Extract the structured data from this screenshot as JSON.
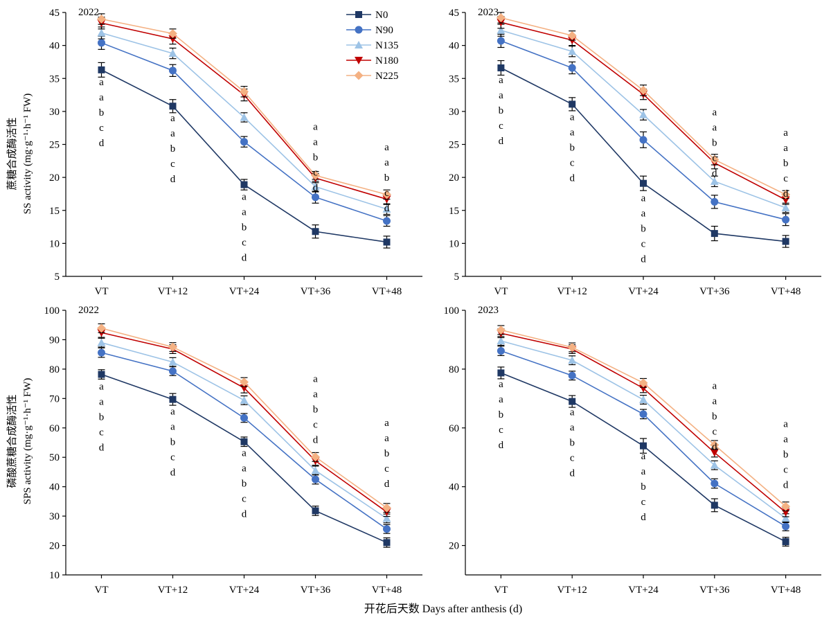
{
  "figure": {
    "xlabel": "开花后天数 Days after anthesis (d)",
    "ylabel_top": [
      "蔗糖合成酶活性",
      "SS activity (mg·g⁻¹·h⁻¹ FW)"
    ],
    "ylabel_bottom": [
      "磷酸蔗糖合成酶活性",
      "SPS activity (mg·g⁻¹·h⁻¹ FW)"
    ]
  },
  "legend": {
    "placement": "top-left of first panel",
    "entries": [
      {
        "name": "N0",
        "marker": "square"
      },
      {
        "name": "N90",
        "marker": "circle"
      },
      {
        "name": "N135",
        "marker": "triangle-up"
      },
      {
        "name": "N180",
        "marker": "triangle-down"
      },
      {
        "name": "N225",
        "marker": "diamond"
      }
    ]
  },
  "colors": {
    "N0": "#1f3864",
    "N90": "#4472c4",
    "N135": "#9dc3e6",
    "N180": "#c00000",
    "N225": "#f4b183",
    "axis": "#000000"
  },
  "chart_data": [
    {
      "type": "line",
      "title": "2022",
      "ylabel": "SS activity (mg·g⁻¹·h⁻¹ FW)",
      "categories": [
        "VT",
        "VT+12",
        "VT+24",
        "VT+36",
        "VT+48"
      ],
      "ylim": [
        5,
        45
      ],
      "yticks": [
        5,
        10,
        15,
        20,
        25,
        30,
        35,
        40,
        45
      ],
      "series": [
        {
          "name": "N0",
          "values": [
            36.3,
            30.8,
            18.9,
            11.8,
            10.2
          ],
          "err": [
            1.1,
            1.0,
            0.8,
            1.0,
            0.9
          ]
        },
        {
          "name": "N90",
          "values": [
            40.4,
            36.2,
            25.4,
            17.0,
            13.4
          ],
          "err": [
            1.0,
            0.9,
            0.8,
            0.9,
            0.8
          ]
        },
        {
          "name": "N135",
          "values": [
            41.9,
            38.8,
            29.1,
            18.6,
            15.2
          ],
          "err": [
            0.9,
            0.8,
            0.7,
            0.8,
            0.8
          ]
        },
        {
          "name": "N180",
          "values": [
            43.4,
            41.0,
            32.5,
            19.9,
            16.7
          ],
          "err": [
            0.9,
            0.8,
            0.9,
            0.7,
            0.8
          ]
        },
        {
          "name": "N225",
          "values": [
            44.0,
            41.8,
            33.0,
            20.3,
            17.4
          ],
          "err": [
            0.8,
            0.7,
            0.8,
            0.6,
            0.7
          ]
        }
      ],
      "letters": [
        {
          "x": "VT",
          "labels": [
            "a",
            "a",
            "b",
            "c",
            "d"
          ],
          "top": 34.0
        },
        {
          "x": "VT+12",
          "labels": [
            "a",
            "a",
            "b",
            "c",
            "d"
          ],
          "top": 28.5
        },
        {
          "x": "VT+24",
          "labels": [
            "a",
            "a",
            "b",
            "c",
            "d"
          ],
          "top": 16.6
        },
        {
          "x": "VT+36",
          "labels": [
            "a",
            "a",
            "b",
            "c",
            "d"
          ],
          "top": 27.2
        },
        {
          "x": "VT+48",
          "labels": [
            "a",
            "a",
            "b",
            "c",
            "d"
          ],
          "top": 24.1
        }
      ]
    },
    {
      "type": "line",
      "title": "2023",
      "ylabel": "SS activity (mg·g⁻¹·h⁻¹ FW)",
      "categories": [
        "VT",
        "VT+12",
        "VT+24",
        "VT+36",
        "VT+48"
      ],
      "ylim": [
        5,
        45
      ],
      "yticks": [
        5,
        10,
        15,
        20,
        25,
        30,
        35,
        40,
        45
      ],
      "series": [
        {
          "name": "N0",
          "values": [
            36.6,
            31.1,
            19.1,
            11.5,
            10.3
          ],
          "err": [
            1.1,
            1.0,
            1.1,
            1.1,
            0.9
          ]
        },
        {
          "name": "N90",
          "values": [
            40.7,
            36.6,
            25.7,
            16.3,
            13.6
          ],
          "err": [
            1.0,
            0.9,
            1.2,
            1.0,
            0.9
          ]
        },
        {
          "name": "N135",
          "values": [
            42.3,
            39.1,
            29.5,
            19.4,
            15.4
          ],
          "err": [
            0.9,
            0.8,
            0.8,
            0.8,
            0.7
          ]
        },
        {
          "name": "N180",
          "values": [
            43.5,
            40.8,
            32.6,
            22.2,
            16.6
          ],
          "err": [
            0.9,
            0.8,
            0.8,
            0.9,
            0.7
          ]
        },
        {
          "name": "N225",
          "values": [
            44.2,
            41.5,
            33.2,
            22.7,
            17.4
          ],
          "err": [
            0.8,
            0.7,
            0.8,
            0.8,
            0.6
          ]
        }
      ],
      "letters": [
        {
          "x": "VT",
          "labels": [
            "a",
            "a",
            "b",
            "c",
            "d"
          ],
          "top": 34.3
        },
        {
          "x": "VT+12",
          "labels": [
            "a",
            "a",
            "b",
            "c",
            "d"
          ],
          "top": 28.7
        },
        {
          "x": "VT+24",
          "labels": [
            "a",
            "a",
            "b",
            "c",
            "d"
          ],
          "top": 16.4
        },
        {
          "x": "VT+36",
          "labels": [
            "a",
            "a",
            "b",
            "c",
            "d"
          ],
          "top": 29.4
        },
        {
          "x": "VT+48",
          "labels": [
            "a",
            "a",
            "b",
            "c",
            "d"
          ],
          "top": 26.3
        }
      ]
    },
    {
      "type": "line",
      "title": "2022",
      "ylabel": "SPS activity (mg·g⁻¹·h⁻¹ FW)",
      "categories": [
        "VT",
        "VT+12",
        "VT+24",
        "VT+36",
        "VT+48"
      ],
      "ylim": [
        10,
        100
      ],
      "yticks": [
        10,
        20,
        30,
        40,
        50,
        60,
        70,
        80,
        90,
        100
      ],
      "series": [
        {
          "name": "N0",
          "values": [
            78.2,
            69.7,
            55.3,
            31.8,
            21.0
          ],
          "err": [
            1.6,
            2.0,
            1.6,
            1.6,
            1.6
          ]
        },
        {
          "name": "N90",
          "values": [
            85.6,
            79.3,
            63.4,
            42.5,
            25.6
          ],
          "err": [
            1.6,
            1.5,
            1.5,
            1.6,
            1.5
          ]
        },
        {
          "name": "N135",
          "values": [
            89.0,
            82.4,
            69.4,
            45.5,
            29.2
          ],
          "err": [
            1.5,
            1.5,
            1.5,
            1.5,
            1.5
          ]
        },
        {
          "name": "N180",
          "values": [
            92.4,
            86.8,
            73.6,
            48.8,
            31.4
          ],
          "err": [
            1.6,
            1.5,
            1.7,
            1.5,
            1.5
          ]
        },
        {
          "name": "N225",
          "values": [
            93.9,
            87.5,
            75.6,
            50.1,
            32.8
          ],
          "err": [
            1.5,
            1.5,
            1.5,
            1.5,
            1.5
          ]
        }
      ],
      "letters": [
        {
          "x": "VT",
          "labels": [
            "a",
            "a",
            "b",
            "c",
            "d"
          ],
          "top": 73.0
        },
        {
          "x": "VT+12",
          "labels": [
            "a",
            "a",
            "b",
            "c",
            "d"
          ],
          "top": 64.6
        },
        {
          "x": "VT+24",
          "labels": [
            "a",
            "a",
            "b",
            "c",
            "d"
          ],
          "top": 50.4
        },
        {
          "x": "VT+36",
          "labels": [
            "a",
            "a",
            "b",
            "c",
            "d"
          ],
          "top": 75.6
        },
        {
          "x": "VT+48",
          "labels": [
            "a",
            "a",
            "b",
            "c",
            "d"
          ],
          "top": 60.7
        }
      ]
    },
    {
      "type": "line",
      "title": "2023",
      "ylabel": "SPS activity (mg·g⁻¹·h⁻¹ FW)",
      "categories": [
        "VT",
        "VT+12",
        "VT+24",
        "VT+36",
        "VT+48"
      ],
      "ylim": [
        10,
        100
      ],
      "yticks": [
        20,
        40,
        60,
        80,
        100
      ],
      "series": [
        {
          "name": "N0",
          "values": [
            78.7,
            69.0,
            53.9,
            33.7,
            21.3
          ],
          "err": [
            2.0,
            2.0,
            2.5,
            2.2,
            1.5
          ]
        },
        {
          "name": "N90",
          "values": [
            86.2,
            77.8,
            64.7,
            41.1,
            26.5
          ],
          "err": [
            1.6,
            1.5,
            1.6,
            1.6,
            1.5
          ]
        },
        {
          "name": "N135",
          "values": [
            89.6,
            83.0,
            69.6,
            47.3,
            29.3
          ],
          "err": [
            1.5,
            1.5,
            1.5,
            1.5,
            1.5
          ]
        },
        {
          "name": "N180",
          "values": [
            92.2,
            86.8,
            73.5,
            51.6,
            31.3
          ],
          "err": [
            1.5,
            1.5,
            1.5,
            1.5,
            1.5
          ]
        },
        {
          "name": "N225",
          "values": [
            93.3,
            87.4,
            75.3,
            54.2,
            33.3
          ],
          "err": [
            1.5,
            1.5,
            1.5,
            1.5,
            1.5
          ]
        }
      ],
      "letters": [
        {
          "x": "VT",
          "labels": [
            "a",
            "a",
            "b",
            "c",
            "d"
          ],
          "top": 73.8
        },
        {
          "x": "VT+12",
          "labels": [
            "a",
            "a",
            "b",
            "c",
            "d"
          ],
          "top": 64.3
        },
        {
          "x": "VT+24",
          "labels": [
            "a",
            "a",
            "b",
            "c",
            "d"
          ],
          "top": 49.4
        },
        {
          "x": "VT+36",
          "labels": [
            "a",
            "a",
            "b",
            "c",
            "d"
          ],
          "top": 73.3
        },
        {
          "x": "VT+48",
          "labels": [
            "a",
            "a",
            "b",
            "c",
            "d"
          ],
          "top": 60.3
        }
      ]
    }
  ]
}
